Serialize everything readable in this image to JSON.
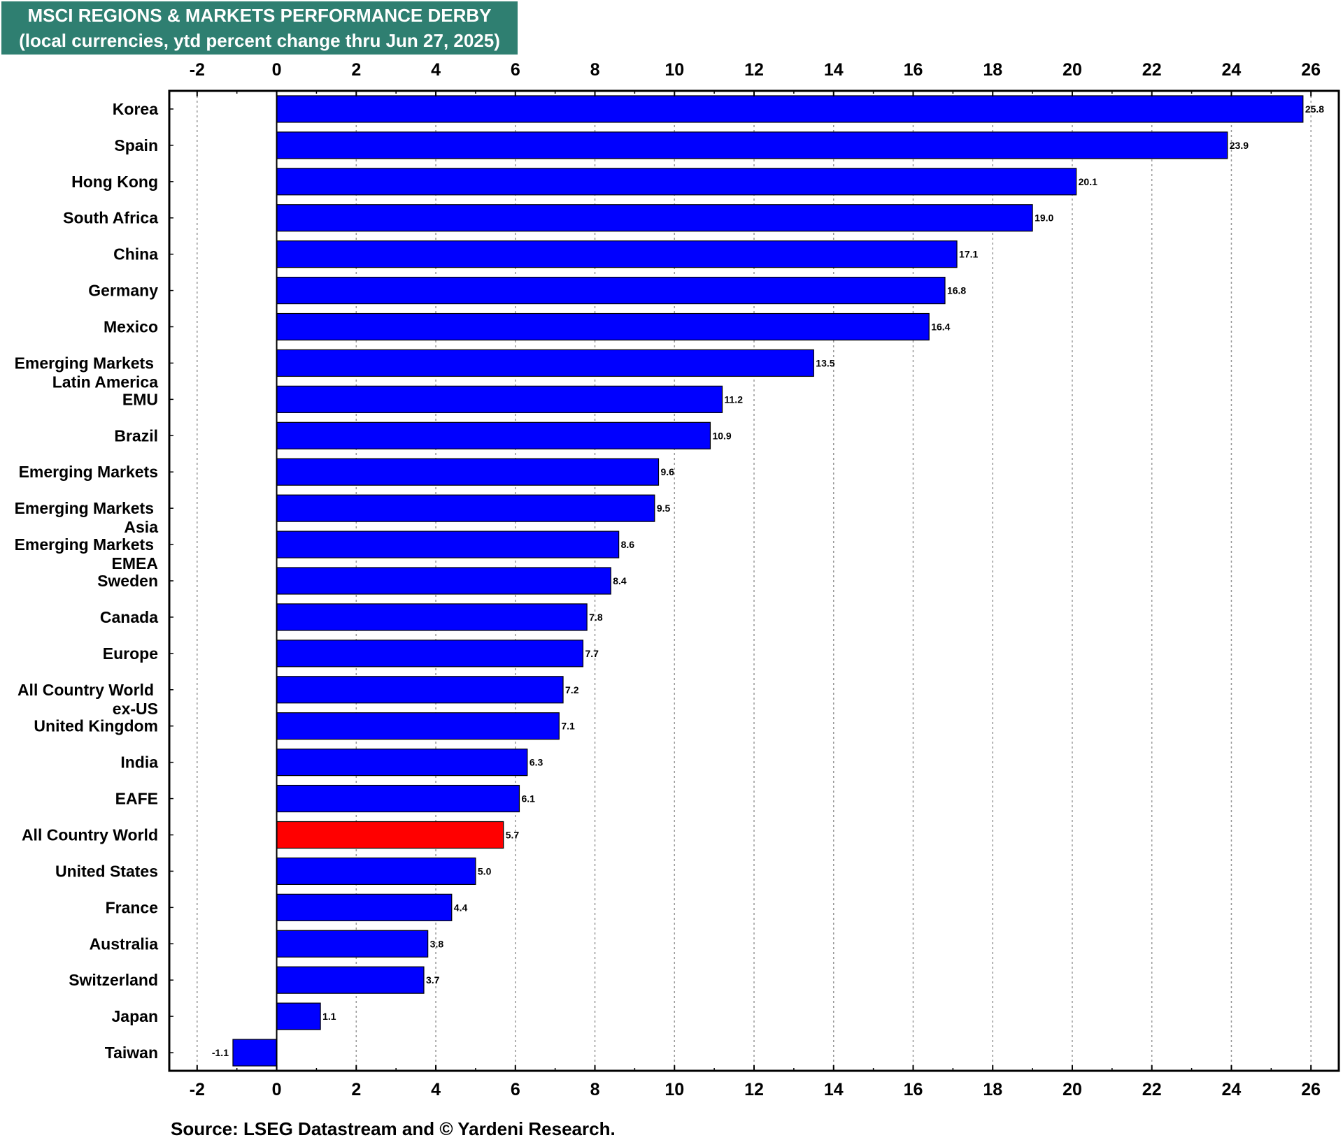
{
  "title": "MSCI REGIONS & MARKETS PERFORMANCE DERBY",
  "subtitle": "(local currencies, ytd percent change thru Jun 27, 2025)",
  "source": "Source: LSEG Datastream and © Yardeni Research.",
  "colors": {
    "bar": "#0000ff",
    "highlight": "#ff0000",
    "title_bg": "#2f7f71",
    "grid": "#999999"
  },
  "chart_data": {
    "type": "bar",
    "orientation": "horizontal",
    "title": "MSCI REGIONS & MARKETS PERFORMANCE DERBY",
    "subtitle": "(local currencies, ytd percent change thru Jun 27, 2025)",
    "xlim": [
      -2.7,
      26.7
    ],
    "x_ticks": [
      -2,
      0,
      2,
      4,
      6,
      8,
      10,
      12,
      14,
      16,
      18,
      20,
      22,
      24,
      26
    ],
    "grid": "vertical dotted",
    "highlighted_category": "All Country World",
    "categories": [
      "Korea",
      "Spain",
      "Hong Kong",
      "South Africa",
      "China",
      "Germany",
      "Mexico",
      "Emerging Markets\nLatin America",
      "EMU",
      "Brazil",
      "Emerging Markets",
      "Emerging Markets\nAsia",
      "Emerging Markets\nEMEA",
      "Sweden",
      "Canada",
      "Europe",
      "All Country World\nex-US",
      "United Kingdom",
      "India",
      "EAFE",
      "All Country World",
      "United States",
      "France",
      "Australia",
      "Switzerland",
      "Japan",
      "Taiwan"
    ],
    "values": [
      25.8,
      23.9,
      20.1,
      19.0,
      17.1,
      16.8,
      16.4,
      13.5,
      11.2,
      10.9,
      9.6,
      9.5,
      8.6,
      8.4,
      7.8,
      7.7,
      7.2,
      7.1,
      6.3,
      6.1,
      5.7,
      5.0,
      4.4,
      3.8,
      3.7,
      1.1,
      -1.1
    ],
    "value_labels": [
      "25.8",
      "23.9",
      "20.1",
      "19.0",
      "17.1",
      "16.8",
      "16.4",
      "13.5",
      "11.2",
      "10.9",
      "9.6",
      "9.5",
      "8.6",
      "8.4",
      "7.8",
      "7.7",
      "7.2",
      "7.1",
      "6.3",
      "6.1",
      "5.7",
      "5.0",
      "4.4",
      "3.8",
      "3.7",
      "1.1",
      "-1.1"
    ]
  }
}
